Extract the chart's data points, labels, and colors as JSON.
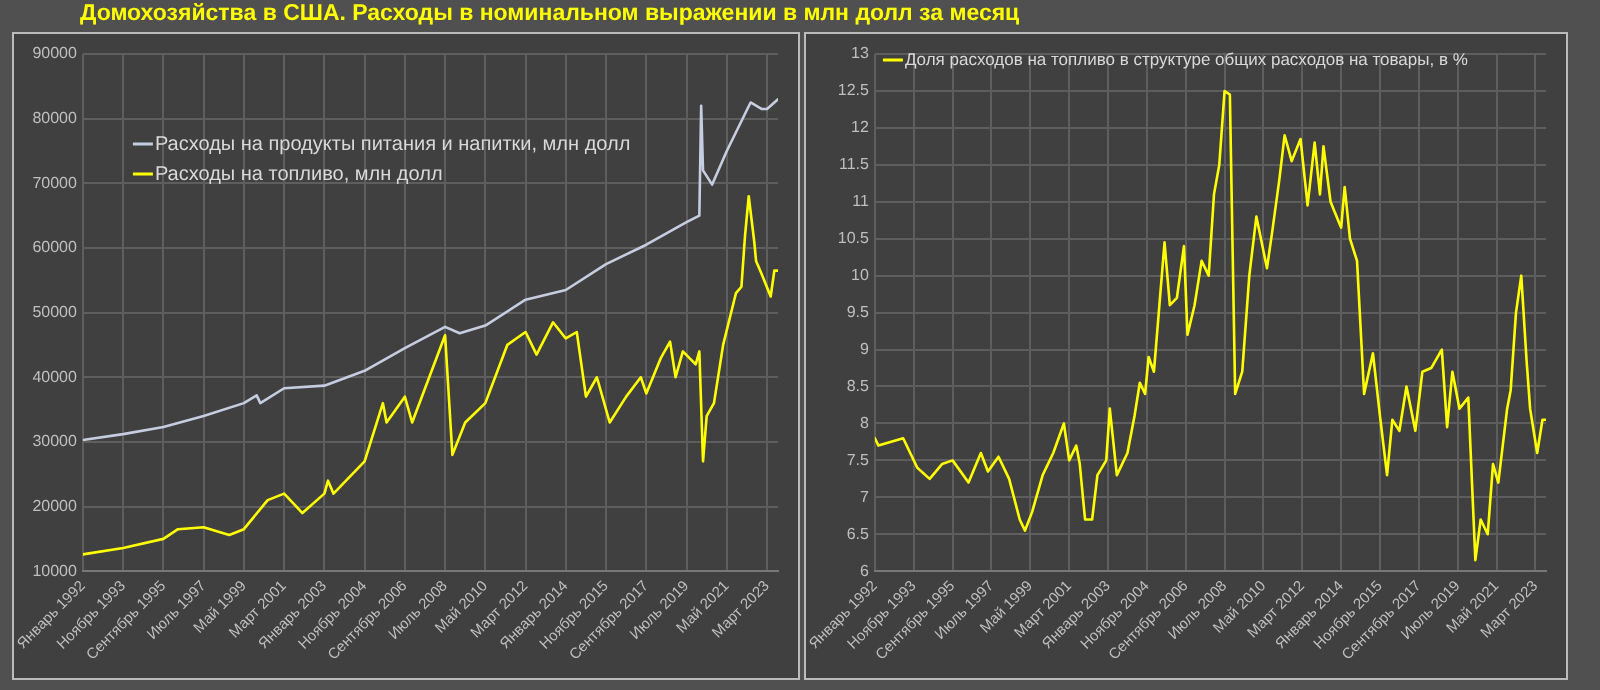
{
  "chart_data": [
    {
      "type": "line",
      "title": "Домохозяйства в США. Расходы в номинальном выражении в млн долл за месяц",
      "xlim": [
        "1992-01",
        "2023-09"
      ],
      "xticks": [
        {
          "value": "1992-01",
          "label": "Январь 1992"
        },
        {
          "value": "1993-11",
          "label": "Ноябрь 1993"
        },
        {
          "value": "1995-09",
          "label": "Сентябрь 1995"
        },
        {
          "value": "1997-07",
          "label": "Июль 1997"
        },
        {
          "value": "1999-05",
          "label": "Май 1999"
        },
        {
          "value": "2001-03",
          "label": "Март 2001"
        },
        {
          "value": "2003-01",
          "label": "Январь 2003"
        },
        {
          "value": "2004-11",
          "label": "Ноябрь 2004"
        },
        {
          "value": "2006-09",
          "label": "Сентябрь 2006"
        },
        {
          "value": "2008-07",
          "label": "Июль 2008"
        },
        {
          "value": "2010-05",
          "label": "Май 2010"
        },
        {
          "value": "2012-03",
          "label": "Март 2012"
        },
        {
          "value": "2014-01",
          "label": "Январь 2014"
        },
        {
          "value": "2015-11",
          "label": "Ноябрь 2015"
        },
        {
          "value": "2017-09",
          "label": "Сентябрь 2017"
        },
        {
          "value": "2019-07",
          "label": "Июль 2019"
        },
        {
          "value": "2021-05",
          "label": "Май 2021"
        },
        {
          "value": "2023-03",
          "label": "Март 2023"
        }
      ],
      "ylim": [
        10000,
        90000
      ],
      "yticks": [
        10000,
        20000,
        30000,
        40000,
        50000,
        60000,
        70000,
        80000,
        90000
      ],
      "grid": true,
      "legend": "top left",
      "line_style": "solid",
      "marker": "none",
      "series": [
        {
          "name": "Расходы на продукты питания и напитки, млн долл",
          "color": "#c5cde0",
          "x": [
            "1992-01",
            "1993-11",
            "1995-09",
            "1997-07",
            "1999-05",
            "1999-12",
            "2000-02",
            "2001-03",
            "2003-01",
            "2004-11",
            "2006-09",
            "2008-07",
            "2009-03",
            "2010-05",
            "2012-03",
            "2014-01",
            "2015-11",
            "2017-09",
            "2019-07",
            "2020-02",
            "2020-03",
            "2020-04",
            "2020-09",
            "2021-05",
            "2022-06",
            "2022-12",
            "2023-03",
            "2023-09"
          ],
          "values": [
            30300,
            31200,
            32300,
            34000,
            36000,
            37200,
            36000,
            38300,
            38700,
            41000,
            44500,
            47800,
            46800,
            48000,
            52000,
            53500,
            57500,
            60500,
            64000,
            65000,
            82000,
            72000,
            69800,
            75000,
            82500,
            81500,
            81500,
            83000
          ]
        },
        {
          "name": "Расходы на топливо, млн долл",
          "color": "#ffff00",
          "x": [
            "1992-01",
            "1993-11",
            "1995-09",
            "1996-05",
            "1997-07",
            "1998-09",
            "1999-05",
            "2000-06",
            "2001-03",
            "2002-01",
            "2003-01",
            "2003-03",
            "2003-06",
            "2004-11",
            "2005-09",
            "2005-11",
            "2006-09",
            "2007-01",
            "2008-07",
            "2008-11",
            "2009-06",
            "2010-05",
            "2011-05",
            "2012-03",
            "2012-09",
            "2013-06",
            "2014-01",
            "2014-07",
            "2014-12",
            "2015-06",
            "2016-01",
            "2016-10",
            "2017-06",
            "2017-09",
            "2018-05",
            "2018-10",
            "2019-01",
            "2019-05",
            "2019-12",
            "2020-02",
            "2020-04",
            "2020-06",
            "2020-10",
            "2021-03",
            "2021-10",
            "2022-01",
            "2022-03",
            "2022-05",
            "2022-08",
            "2022-09",
            "2022-12",
            "2023-05",
            "2023-07",
            "2023-09"
          ],
          "values": [
            12600,
            13600,
            15000,
            16500,
            16800,
            15600,
            16500,
            21000,
            22000,
            19000,
            22000,
            24000,
            22000,
            27000,
            36000,
            33000,
            37000,
            33000,
            46500,
            28000,
            33000,
            36000,
            45000,
            47000,
            43500,
            48500,
            46000,
            47000,
            37000,
            40000,
            33000,
            37000,
            40000,
            37500,
            43000,
            45500,
            40000,
            44000,
            42000,
            44000,
            27000,
            34000,
            36000,
            45000,
            53000,
            54000,
            62000,
            68000,
            61000,
            58000,
            56000,
            52500,
            56500,
            56500
          ]
        }
      ]
    },
    {
      "type": "line",
      "xlim": [
        "1992-01",
        "2023-09"
      ],
      "xticks": [
        {
          "value": "1992-01",
          "label": "Январь 1992"
        },
        {
          "value": "1993-11",
          "label": "Ноябрь 1993"
        },
        {
          "value": "1995-09",
          "label": "Сентябрь 1995"
        },
        {
          "value": "1997-07",
          "label": "Июль 1997"
        },
        {
          "value": "1999-05",
          "label": "Май 1999"
        },
        {
          "value": "2001-03",
          "label": "Март 2001"
        },
        {
          "value": "2003-01",
          "label": "Январь 2003"
        },
        {
          "value": "2004-11",
          "label": "Ноябрь 2004"
        },
        {
          "value": "2006-09",
          "label": "Сентябрь 2006"
        },
        {
          "value": "2008-07",
          "label": "Июль 2008"
        },
        {
          "value": "2010-05",
          "label": "Май 2010"
        },
        {
          "value": "2012-03",
          "label": "Март 2012"
        },
        {
          "value": "2014-01",
          "label": "Январь 2014"
        },
        {
          "value": "2015-11",
          "label": "Ноябрь 2015"
        },
        {
          "value": "2017-09",
          "label": "Сентябрь 2017"
        },
        {
          "value": "2019-07",
          "label": "Июль 2019"
        },
        {
          "value": "2021-05",
          "label": "Май 2021"
        },
        {
          "value": "2023-03",
          "label": "Март 2023"
        }
      ],
      "ylim": [
        6,
        13
      ],
      "yticks": [
        6,
        6.5,
        7,
        7.5,
        8,
        8.5,
        9,
        9.5,
        10,
        10.5,
        11,
        11.5,
        12,
        12.5,
        13
      ],
      "grid": true,
      "legend": "top",
      "line_style": "solid",
      "marker": "none",
      "series": [
        {
          "name": "Доля расходов на топливо в структуре общих расходов на товары, в %",
          "color": "#ffff00",
          "x": [
            "1992-01",
            "1992-03",
            "1993-05",
            "1994-01",
            "1994-08",
            "1995-03",
            "1995-09",
            "1996-06",
            "1997-01",
            "1997-05",
            "1997-11",
            "1998-05",
            "1998-11",
            "1999-02",
            "1999-06",
            "1999-12",
            "2000-06",
            "2000-12",
            "2001-03",
            "2001-07",
            "2001-09",
            "2001-12",
            "2002-04",
            "2002-07",
            "2002-12",
            "2003-02",
            "2003-06",
            "2003-12",
            "2004-04",
            "2004-07",
            "2004-10",
            "2004-12",
            "2005-03",
            "2005-09",
            "2005-12",
            "2006-04",
            "2006-08",
            "2006-10",
            "2007-02",
            "2007-06",
            "2007-10",
            "2008-01",
            "2008-04",
            "2008-07",
            "2008-10",
            "2009-01",
            "2009-05",
            "2009-09",
            "2010-01",
            "2010-07",
            "2010-10",
            "2011-02",
            "2011-05",
            "2011-09",
            "2012-02",
            "2012-06",
            "2012-10",
            "2013-01",
            "2013-03",
            "2013-07",
            "2014-01",
            "2014-03",
            "2014-06",
            "2014-10",
            "2015-02",
            "2015-07",
            "2015-11",
            "2016-03",
            "2016-06",
            "2016-10",
            "2017-02",
            "2017-07",
            "2017-11",
            "2018-04",
            "2018-10",
            "2019-01",
            "2019-04",
            "2019-08",
            "2020-01",
            "2020-05",
            "2020-08",
            "2020-12",
            "2021-03",
            "2021-06",
            "2021-11",
            "2022-01",
            "2022-04",
            "2022-07",
            "2022-10",
            "2022-12",
            "2023-04",
            "2023-07",
            "2023-09"
          ],
          "values": [
            7.8,
            7.7,
            7.8,
            7.4,
            7.25,
            7.45,
            7.5,
            7.2,
            7.6,
            7.35,
            7.55,
            7.25,
            6.7,
            6.55,
            6.8,
            7.3,
            7.6,
            8.0,
            7.5,
            7.7,
            7.45,
            6.7,
            6.7,
            7.3,
            7.5,
            8.2,
            7.3,
            7.6,
            8.1,
            8.55,
            8.4,
            8.9,
            8.7,
            10.45,
            9.6,
            9.7,
            10.4,
            9.2,
            9.6,
            10.2,
            10.0,
            11.1,
            11.5,
            12.5,
            12.45,
            8.4,
            8.7,
            10.0,
            10.8,
            10.1,
            10.6,
            11.3,
            11.9,
            11.55,
            11.85,
            10.95,
            11.8,
            11.1,
            11.75,
            11.0,
            10.65,
            11.2,
            10.5,
            10.2,
            8.4,
            8.95,
            8.1,
            7.3,
            8.05,
            7.9,
            8.5,
            7.9,
            8.7,
            8.75,
            9.0,
            7.95,
            8.7,
            8.2,
            8.35,
            6.15,
            6.7,
            6.5,
            7.45,
            7.2,
            8.2,
            8.45,
            9.5,
            10.0,
            8.85,
            8.2,
            7.6,
            8.05,
            8.05
          ]
        }
      ]
    }
  ]
}
